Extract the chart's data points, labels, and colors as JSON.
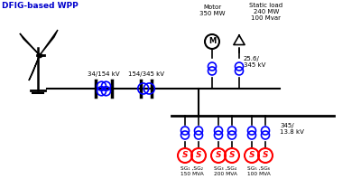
{
  "title": "DFIG-based WPP",
  "title_color": "#0000cc",
  "bg_color": "#ffffff",
  "transformer1_label": "34/154 kV",
  "transformer2_label": "154/345 kV",
  "motor_label": "Motor\n350 MW",
  "static_load_label": "Static load\n240 MW\n100 Mvar",
  "transformer3_label": "25.6/\n345 kV",
  "bus_label": "345/\n13.8 kV",
  "sg_labels": [
    "SG₁ ,SG₂\n150 MVA",
    "SG₃ ,SG₄\n200 MVA",
    "SG₅ ,SG₆\n100 MVA"
  ],
  "blue": "#0000ff",
  "red": "#ff0000",
  "black": "#000000",
  "lw": 1.2
}
